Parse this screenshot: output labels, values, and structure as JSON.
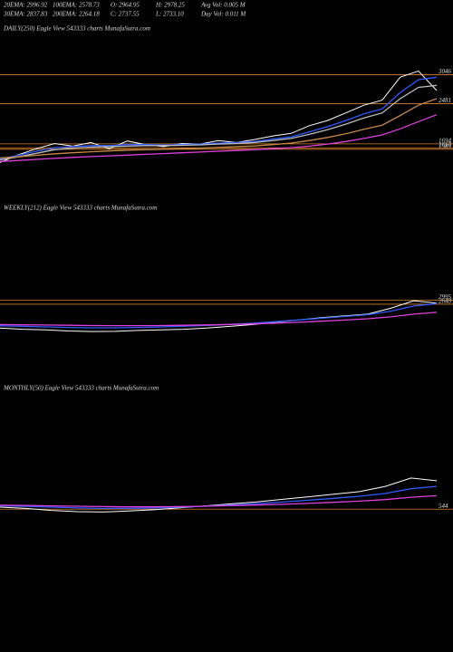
{
  "header": [
    [
      "20EMA: 2996.92",
      "100EMA: 2578.73",
      "O: 2964.95",
      "H: 2978.25",
      "Avg Vol: 0.005 M"
    ],
    [
      "30EMA: 2837.83",
      "200EMA: 2264.18",
      "C: 2737.55",
      "L: 2733.10",
      "Day Vol: 0.011 M"
    ]
  ],
  "chart_data": [
    {
      "type": "line",
      "title": "DAILY(250) Eagle  View  543333 charts MunafaSutra.com",
      "ylim": [
        700,
        3800
      ],
      "levels": [
        3046,
        2481,
        1694,
        1617,
        1589
      ],
      "level_color": "#d9822b",
      "series": [
        {
          "color": "#ffffff",
          "values": [
            1330,
            1480,
            1600,
            1700,
            1650,
            1720,
            1600,
            1750,
            1680,
            1640,
            1700,
            1690,
            1760,
            1720,
            1780,
            1850,
            1900,
            2050,
            2150,
            2300,
            2450,
            2550,
            3000,
            3120,
            2737
          ]
        },
        {
          "color": "#2f5bff",
          "values": [
            1400,
            1470,
            1550,
            1620,
            1640,
            1660,
            1660,
            1680,
            1680,
            1670,
            1680,
            1690,
            1710,
            1720,
            1740,
            1790,
            1830,
            1930,
            2030,
            2150,
            2280,
            2380,
            2700,
            2950,
            2997
          ]
        },
        {
          "color": "#bbbbbb",
          "values": [
            1380,
            1440,
            1510,
            1580,
            1610,
            1630,
            1640,
            1650,
            1660,
            1660,
            1665,
            1675,
            1690,
            1700,
            1720,
            1760,
            1800,
            1880,
            1970,
            2080,
            2200,
            2300,
            2580,
            2800,
            2838
          ]
        },
        {
          "color": "#c8874a",
          "values": [
            1420,
            1440,
            1470,
            1500,
            1520,
            1540,
            1555,
            1570,
            1580,
            1590,
            1600,
            1610,
            1625,
            1640,
            1655,
            1680,
            1710,
            1760,
            1820,
            1890,
            1980,
            2060,
            2250,
            2450,
            2579
          ]
        },
        {
          "color": "#e040e0",
          "values": [
            1350,
            1370,
            1390,
            1410,
            1430,
            1445,
            1460,
            1475,
            1490,
            1505,
            1520,
            1535,
            1550,
            1565,
            1580,
            1600,
            1620,
            1650,
            1690,
            1740,
            1800,
            1870,
            1990,
            2130,
            2264
          ]
        }
      ]
    },
    {
      "type": "line",
      "title": "WEEKLY(212) Eagle  View  543333 charts MunafaSutra.com",
      "ylim": [
        0,
        3500
      ],
      "levels": [
        2995,
        2648
      ],
      "level_color": "#d9822b",
      "series": [
        {
          "color": "#ffffff",
          "values": [
            600,
            500,
            450,
            350,
            300,
            320,
            400,
            450,
            500,
            600,
            750,
            900,
            1100,
            1300,
            1500,
            1650,
            1800,
            2300,
            2950,
            2737
          ]
        },
        {
          "color": "#2f5bff",
          "values": [
            800,
            750,
            700,
            650,
            620,
            620,
            650,
            700,
            760,
            830,
            920,
            1020,
            1150,
            1300,
            1450,
            1600,
            1750,
            2050,
            2500,
            2700
          ]
        },
        {
          "color": "#e040e0",
          "values": [
            900,
            880,
            860,
            840,
            820,
            810,
            810,
            820,
            840,
            870,
            910,
            960,
            1020,
            1100,
            1190,
            1290,
            1400,
            1560,
            1800,
            1950
          ]
        }
      ]
    },
    {
      "type": "line",
      "title": "MONTHLY(50) Eagle  View  543333 charts MunafaSutra.com",
      "ylim": [
        0,
        3500
      ],
      "levels": [
        544
      ],
      "level_color": "#d9822b",
      "series": [
        {
          "color": "#ffffff",
          "values": [
            700,
            600,
            450,
            350,
            320,
            400,
            500,
            650,
            800,
            950,
            1100,
            1300,
            1500,
            1700,
            1900,
            2300,
            2950,
            2737
          ]
        },
        {
          "color": "#2f5bff",
          "values": [
            800,
            760,
            700,
            640,
            600,
            600,
            640,
            700,
            780,
            870,
            970,
            1090,
            1230,
            1380,
            1540,
            1760,
            2120,
            2300
          ]
        },
        {
          "color": "#e040e0",
          "values": [
            850,
            830,
            800,
            770,
            740,
            720,
            720,
            740,
            770,
            810,
            860,
            920,
            990,
            1070,
            1160,
            1280,
            1460,
            1580
          ]
        }
      ]
    }
  ]
}
